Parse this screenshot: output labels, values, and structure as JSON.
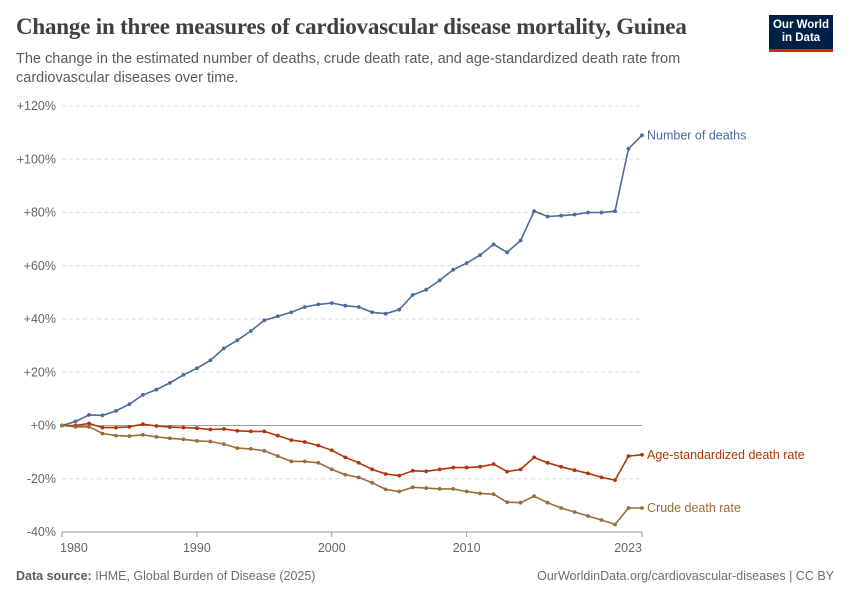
{
  "title": "Change in three measures of cardiovascular disease mortality, Guinea",
  "subtitle": "The change in the estimated number of deaths, crude death rate, and age-standardized death rate from cardiovascular diseases over time.",
  "logo": {
    "line1": "Our World",
    "line2": "in Data",
    "bg": "#002147",
    "accent": "#ce261e"
  },
  "footer": {
    "source_label": "Data source:",
    "source_text": "IHME, Global Burden of Disease (2025)",
    "url_license": "OurWorldinData.org/cardiovascular-diseases | CC BY"
  },
  "chart_data": {
    "type": "line",
    "title": "Change in three measures of cardiovascular disease mortality, Guinea",
    "xlim": [
      1980,
      2023
    ],
    "ylim": [
      -40,
      120
    ],
    "x_ticks": [
      1980,
      1990,
      2000,
      2010,
      2023
    ],
    "x_tick_labels": [
      "1980",
      "1990",
      "2000",
      "2010",
      "2023"
    ],
    "y_ticks": [
      -40,
      -20,
      0,
      20,
      40,
      60,
      80,
      100,
      120
    ],
    "y_tick_labels": [
      "-40%",
      "-20%",
      "+0%",
      "+20%",
      "+40%",
      "+60%",
      "+80%",
      "+100%",
      "+120%"
    ],
    "grid": "horizontal dashed",
    "legend": "inline labels at line ends (right)",
    "x": [
      1980,
      1981,
      1982,
      1983,
      1984,
      1985,
      1986,
      1987,
      1988,
      1989,
      1990,
      1991,
      1992,
      1993,
      1994,
      1995,
      1996,
      1997,
      1998,
      1999,
      2000,
      2001,
      2002,
      2003,
      2004,
      2005,
      2006,
      2007,
      2008,
      2009,
      2010,
      2011,
      2012,
      2013,
      2014,
      2015,
      2016,
      2017,
      2018,
      2019,
      2020,
      2021,
      2022,
      2023
    ],
    "series": [
      {
        "name": "Number of deaths",
        "color": "#4c6a9c",
        "values": [
          0,
          1.5,
          4,
          3.8,
          5.5,
          8,
          11.5,
          13.5,
          16,
          19,
          21.5,
          24.5,
          29,
          32,
          35.5,
          39.5,
          41,
          42.5,
          44.5,
          45.5,
          46,
          45,
          44.5,
          42.5,
          42,
          43.5,
          49,
          51,
          54.5,
          58.5,
          61,
          64,
          68,
          65,
          69.5,
          80.5,
          78.5,
          78.8,
          79.2,
          80,
          80,
          80.5,
          104,
          109
        ]
      },
      {
        "name": "Age-standardized death rate",
        "color": "#b13507",
        "values": [
          0,
          0,
          0.8,
          -0.8,
          -0.8,
          -0.5,
          0.5,
          -0.2,
          -0.6,
          -0.8,
          -1,
          -1.5,
          -1.3,
          -2,
          -2.2,
          -2.2,
          -3.8,
          -5.5,
          -6.2,
          -7.5,
          -9.3,
          -12,
          -14,
          -16.5,
          -18.2,
          -18.8,
          -17,
          -17.2,
          -16.5,
          -15.8,
          -15.8,
          -15.5,
          -14.5,
          -17.3,
          -16.5,
          -12,
          -14,
          -15.5,
          -16.8,
          -18,
          -19.5,
          -20.5,
          -11.5,
          -11
        ]
      },
      {
        "name": "Crude death rate",
        "color": "#996d39",
        "values": [
          0,
          -0.5,
          -0.5,
          -3,
          -3.8,
          -4,
          -3.5,
          -4.3,
          -4.8,
          -5.2,
          -5.8,
          -6,
          -7,
          -8.5,
          -8.8,
          -9.5,
          -11.5,
          -13.5,
          -13.5,
          -14,
          -16.5,
          -18.5,
          -19.5,
          -21.5,
          -24,
          -24.8,
          -23.2,
          -23.5,
          -23.8,
          -23.8,
          -24.8,
          -25.5,
          -25.8,
          -28.8,
          -29,
          -26.5,
          -29,
          -31,
          -32.5,
          -34,
          -35.5,
          -37.2,
          -31,
          -31
        ]
      }
    ]
  }
}
